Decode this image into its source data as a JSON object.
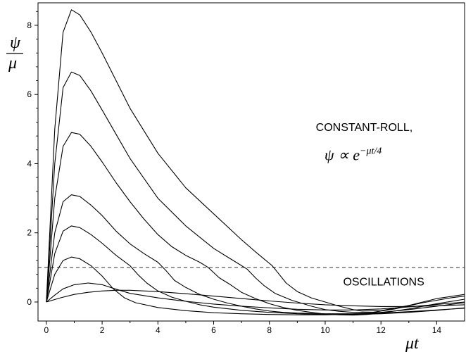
{
  "chart_data": {
    "type": "line",
    "xlabel": "μt",
    "ylabel": {
      "numerator": "ψ",
      "denominator": "μ"
    },
    "xlim": [
      -0.3,
      15.0
    ],
    "ylim": [
      -0.55,
      8.65
    ],
    "x_ticks": [
      0,
      2,
      4,
      6,
      8,
      10,
      12,
      14
    ],
    "y_ticks": [
      0,
      2,
      4,
      6,
      8
    ],
    "grid": false,
    "legend": "none",
    "threshold_line": {
      "y": 1.0,
      "style": "dashed"
    },
    "annotations": [
      {
        "text": "CONSTANT-ROLL,",
        "x": 11.4,
        "y": 4.95
      },
      {
        "text": "ψ ∝ e",
        "superscript": "−μt/4",
        "x": 11.0,
        "y": 4.1
      },
      {
        "text": "OSCILLATIONS",
        "x": 12.1,
        "y": 0.48
      }
    ],
    "series": [
      {
        "x": [
          0,
          0.3,
          0.6,
          0.9,
          1.2,
          1.6,
          2.0,
          2.5,
          3.0,
          4.0,
          5.0,
          6.0,
          7.0,
          7.5,
          7.8,
          8.1,
          8.3,
          8.6,
          9.0,
          9.5,
          10.0,
          10.5,
          11.0,
          11.3,
          12.0,
          13.0,
          14.0,
          15.0
        ],
        "values": [
          0,
          5.0,
          7.8,
          8.45,
          8.3,
          7.8,
          7.2,
          6.4,
          5.6,
          4.3,
          3.3,
          2.55,
          1.8,
          1.45,
          1.25,
          1.05,
          0.85,
          0.55,
          0.3,
          0.12,
          0.0,
          -0.12,
          -0.22,
          -0.26,
          -0.25,
          -0.1,
          0.1,
          0.22
        ]
      },
      {
        "x": [
          0,
          0.3,
          0.6,
          0.9,
          1.2,
          1.6,
          2.0,
          2.5,
          3.0,
          4.0,
          5.0,
          6.0,
          6.5,
          6.9,
          7.2,
          7.5,
          7.8,
          8.2,
          8.8,
          9.5,
          10.0,
          10.5,
          11.0,
          11.7,
          12.5,
          13.5,
          14.5,
          15.0
        ],
        "values": [
          0,
          4.0,
          6.2,
          6.65,
          6.55,
          6.1,
          5.55,
          4.85,
          4.15,
          3.0,
          2.2,
          1.55,
          1.3,
          1.1,
          0.95,
          0.7,
          0.48,
          0.25,
          0.05,
          -0.12,
          -0.22,
          -0.27,
          -0.3,
          -0.3,
          -0.2,
          -0.02,
          0.12,
          0.17
        ]
      },
      {
        "x": [
          0,
          0.3,
          0.6,
          0.9,
          1.2,
          1.6,
          2.0,
          2.5,
          3.0,
          3.5,
          4.0,
          4.5,
          5.0,
          5.5,
          5.8,
          6.2,
          6.6,
          7.0,
          7.5,
          8.0,
          8.5,
          9.0,
          9.5,
          10.0,
          10.5,
          11.0,
          11.5,
          12.0,
          13.0,
          14.0,
          15.0
        ],
        "values": [
          0,
          3.0,
          4.5,
          4.9,
          4.85,
          4.5,
          4.05,
          3.45,
          2.9,
          2.4,
          1.95,
          1.6,
          1.35,
          1.15,
          1.0,
          0.7,
          0.5,
          0.28,
          0.1,
          -0.05,
          -0.16,
          -0.24,
          -0.3,
          -0.35,
          -0.37,
          -0.38,
          -0.36,
          -0.32,
          -0.2,
          -0.05,
          0.08
        ]
      },
      {
        "x": [
          0,
          0.3,
          0.6,
          0.9,
          1.2,
          1.6,
          2.0,
          2.5,
          3.0,
          3.5,
          4.0,
          4.3,
          4.6,
          5.0,
          5.5,
          6.0,
          6.5,
          7.0,
          7.5,
          8.0,
          8.5,
          9.0,
          9.5,
          10.0,
          11.0,
          12.0,
          13.0,
          14.0,
          15.0
        ],
        "values": [
          0,
          2.0,
          2.9,
          3.1,
          3.05,
          2.8,
          2.5,
          2.05,
          1.68,
          1.4,
          1.15,
          0.9,
          0.62,
          0.42,
          0.22,
          0.08,
          -0.03,
          -0.12,
          -0.2,
          -0.26,
          -0.3,
          -0.32,
          -0.33,
          -0.34,
          -0.34,
          -0.3,
          -0.22,
          -0.12,
          -0.02
        ]
      },
      {
        "x": [
          0,
          0.3,
          0.6,
          0.9,
          1.2,
          1.6,
          2.0,
          2.5,
          3.0,
          3.3,
          3.6,
          4.0,
          4.5,
          5.0,
          5.5,
          6.0,
          7.0,
          8.0,
          9.0,
          10.0,
          11.0,
          12.0,
          13.0,
          14.0,
          15.0
        ],
        "values": [
          0,
          1.4,
          2.05,
          2.2,
          2.15,
          1.95,
          1.7,
          1.35,
          1.05,
          0.78,
          0.55,
          0.32,
          0.14,
          0.02,
          -0.08,
          -0.15,
          -0.24,
          -0.3,
          -0.34,
          -0.36,
          -0.36,
          -0.34,
          -0.3,
          -0.24,
          -0.17
        ]
      },
      {
        "x": [
          0,
          0.3,
          0.6,
          0.9,
          1.2,
          1.6,
          2.0,
          2.4,
          2.8,
          3.2,
          4.0,
          5.0,
          6.0,
          7.0,
          8.0,
          9.0,
          10.0,
          11.0,
          12.0,
          13.0,
          14.0,
          15.0
        ],
        "values": [
          0,
          0.8,
          1.2,
          1.3,
          1.25,
          1.05,
          0.75,
          0.38,
          0.12,
          -0.02,
          -0.16,
          -0.25,
          -0.31,
          -0.34,
          -0.36,
          -0.37,
          -0.37,
          -0.35,
          -0.32,
          -0.28,
          -0.23,
          -0.18
        ]
      },
      {
        "x": [
          0,
          0.3,
          0.6,
          1.0,
          1.5,
          2.0,
          2.5,
          3.0,
          4.0,
          5.0,
          6.0,
          7.0,
          8.0,
          9.0,
          10.0,
          11.0,
          12.0,
          13.0,
          14.0,
          15.0
        ],
        "values": [
          0,
          0.2,
          0.38,
          0.5,
          0.55,
          0.5,
          0.37,
          0.25,
          0.12,
          0.02,
          -0.06,
          -0.12,
          -0.17,
          -0.21,
          -0.23,
          -0.23,
          -0.2,
          -0.14,
          -0.07,
          0.0
        ]
      },
      {
        "x": [
          0,
          0.5,
          1.0,
          1.5,
          2.0,
          2.5,
          3.0,
          4.0,
          5.0,
          6.0,
          7.0,
          8.0,
          9.0,
          10.0,
          11.0,
          12.0,
          13.0,
          14.0,
          15.0
        ],
        "values": [
          0,
          0.12,
          0.22,
          0.28,
          0.32,
          0.34,
          0.34,
          0.3,
          0.24,
          0.17,
          0.1,
          0.03,
          -0.03,
          -0.08,
          -0.11,
          -0.13,
          -0.13,
          -0.11,
          -0.08
        ]
      }
    ]
  }
}
